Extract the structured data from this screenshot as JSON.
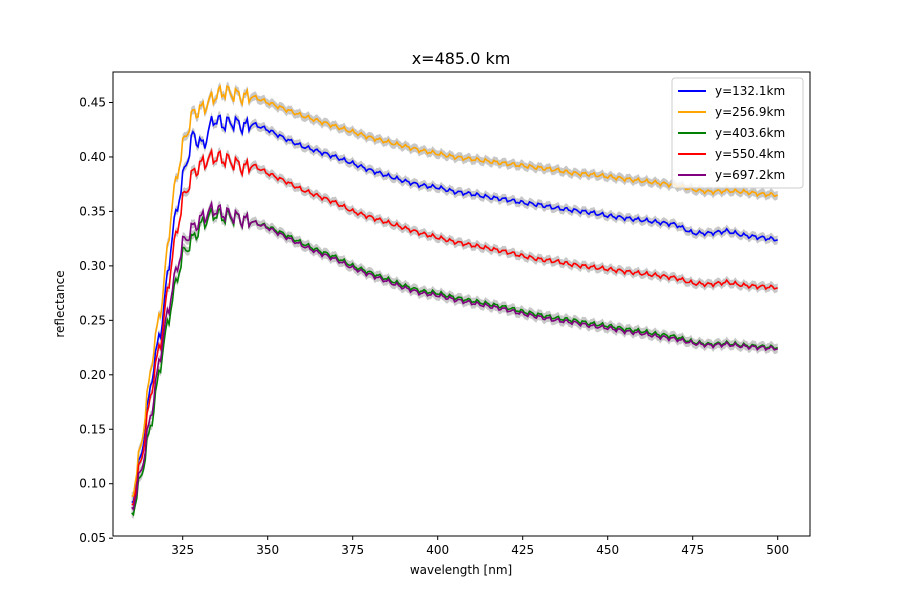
{
  "chart_data": {
    "type": "line",
    "title": "x=485.0 km",
    "xlabel": "wavelength [nm]",
    "ylabel": "reflectance",
    "xlim": [
      304.5,
      509.5
    ],
    "ylim": [
      0.052,
      0.478
    ],
    "xticks": [
      325,
      350,
      375,
      400,
      425,
      450,
      475,
      500
    ],
    "yticks": [
      0.05,
      0.1,
      0.15,
      0.2,
      0.25,
      0.3,
      0.35,
      0.4,
      0.45
    ],
    "ytick_labels": [
      "0.05",
      "0.10",
      "0.15",
      "0.20",
      "0.25",
      "0.30",
      "0.35",
      "0.40",
      "0.45"
    ],
    "grid": false,
    "legend_position": "upper right",
    "uncertainty_band_color": "#c8c8c8",
    "x": [
      310,
      313,
      316,
      319,
      322,
      325,
      328,
      331,
      334,
      337,
      340,
      343,
      346,
      350,
      355,
      360,
      365,
      370,
      375,
      380,
      385,
      390,
      395,
      400,
      405,
      410,
      415,
      420,
      425,
      430,
      435,
      440,
      445,
      450,
      455,
      460,
      465,
      470,
      475,
      480,
      485,
      490,
      495,
      500
    ],
    "series": [
      {
        "name": "y=132.1km",
        "color": "#0000ff",
        "values": [
          0.08,
          0.13,
          0.2,
          0.25,
          0.33,
          0.38,
          0.42,
          0.41,
          0.435,
          0.43,
          0.432,
          0.428,
          0.43,
          0.425,
          0.417,
          0.41,
          0.405,
          0.4,
          0.394,
          0.388,
          0.383,
          0.378,
          0.374,
          0.372,
          0.368,
          0.366,
          0.363,
          0.361,
          0.358,
          0.356,
          0.353,
          0.351,
          0.349,
          0.346,
          0.344,
          0.342,
          0.34,
          0.338,
          0.33,
          0.33,
          0.332,
          0.328,
          0.326,
          0.324
        ]
      },
      {
        "name": "y=256.9km",
        "color": "#ffa500",
        "values": [
          0.085,
          0.14,
          0.215,
          0.27,
          0.36,
          0.41,
          0.44,
          0.445,
          0.455,
          0.46,
          0.458,
          0.455,
          0.455,
          0.45,
          0.444,
          0.438,
          0.433,
          0.428,
          0.423,
          0.418,
          0.414,
          0.41,
          0.406,
          0.403,
          0.4,
          0.398,
          0.396,
          0.394,
          0.392,
          0.39,
          0.388,
          0.385,
          0.384,
          0.382,
          0.38,
          0.378,
          0.376,
          0.374,
          0.37,
          0.368,
          0.369,
          0.368,
          0.366,
          0.365
        ]
      },
      {
        "name": "y=403.6km",
        "color": "#008000",
        "values": [
          0.07,
          0.11,
          0.16,
          0.22,
          0.27,
          0.31,
          0.325,
          0.34,
          0.348,
          0.345,
          0.345,
          0.342,
          0.34,
          0.336,
          0.329,
          0.321,
          0.314,
          0.308,
          0.3,
          0.294,
          0.288,
          0.282,
          0.277,
          0.275,
          0.271,
          0.268,
          0.265,
          0.262,
          0.258,
          0.255,
          0.252,
          0.25,
          0.247,
          0.245,
          0.242,
          0.24,
          0.237,
          0.235,
          0.23,
          0.228,
          0.229,
          0.227,
          0.226,
          0.225
        ]
      },
      {
        "name": "y=550.4km",
        "color": "#ff0000",
        "values": [
          0.078,
          0.125,
          0.19,
          0.24,
          0.31,
          0.36,
          0.385,
          0.395,
          0.4,
          0.398,
          0.395,
          0.39,
          0.392,
          0.385,
          0.378,
          0.37,
          0.364,
          0.358,
          0.35,
          0.345,
          0.34,
          0.335,
          0.33,
          0.326,
          0.322,
          0.319,
          0.316,
          0.313,
          0.309,
          0.306,
          0.304,
          0.301,
          0.299,
          0.297,
          0.295,
          0.293,
          0.291,
          0.289,
          0.284,
          0.283,
          0.285,
          0.282,
          0.281,
          0.28
        ]
      },
      {
        "name": "y=697.2km",
        "color": "#800080",
        "values": [
          0.075,
          0.115,
          0.17,
          0.23,
          0.28,
          0.32,
          0.335,
          0.345,
          0.352,
          0.348,
          0.346,
          0.342,
          0.34,
          0.335,
          0.327,
          0.319,
          0.312,
          0.306,
          0.298,
          0.292,
          0.286,
          0.28,
          0.275,
          0.273,
          0.269,
          0.266,
          0.263,
          0.26,
          0.256,
          0.253,
          0.25,
          0.248,
          0.245,
          0.243,
          0.24,
          0.238,
          0.235,
          0.233,
          0.229,
          0.227,
          0.228,
          0.226,
          0.225,
          0.224
        ]
      }
    ]
  }
}
